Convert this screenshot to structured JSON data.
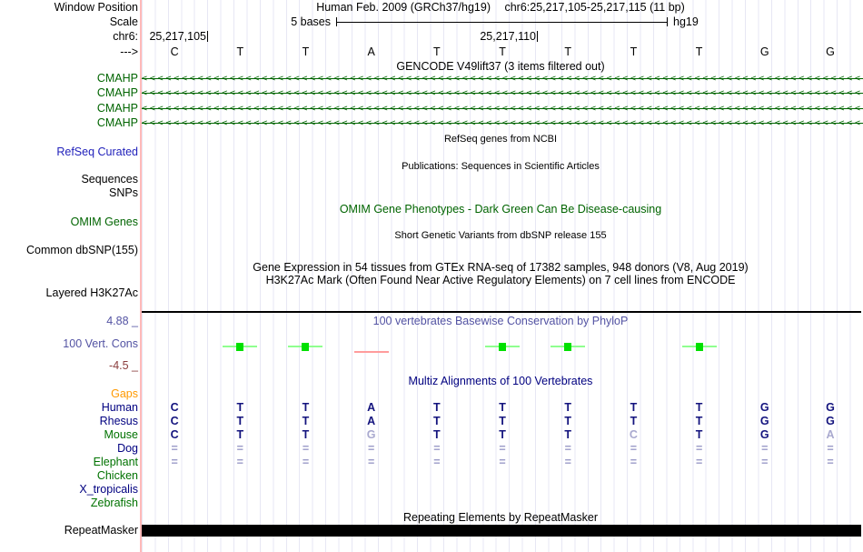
{
  "header": {
    "window_position_label": "Window Position",
    "assembly": "Human Feb. 2009 (GRCh37/hg19)",
    "position": "chr6:25,217,105-25,217,115 (11 bp)",
    "scale_label": "Scale",
    "scale_text": "5 bases",
    "scale_right": "hg19",
    "chrom_label": "chr6:",
    "coord_left": "25,217,105",
    "coord_mid": "25,217,110",
    "strand_label": "--->",
    "bases": [
      "C",
      "T",
      "T",
      "A",
      "T",
      "T",
      "T",
      "T",
      "T",
      "G",
      "G"
    ]
  },
  "tracks": {
    "gencode": {
      "title": "GENCODE V49lift37 (3 items filtered out)",
      "strand_char": "<",
      "genes": [
        {
          "label": "CMAHP"
        },
        {
          "label": "CMAHP"
        },
        {
          "label": "CMAHP"
        },
        {
          "label": "CMAHP"
        }
      ]
    },
    "refseq": {
      "title": "RefSeq genes from NCBI",
      "label": "RefSeq Curated"
    },
    "publications": {
      "title": "Publications: Sequences in Scientific Articles"
    },
    "sequences_label": "Sequences",
    "snps_label": "SNPs",
    "omim": {
      "title": "OMIM Gene Phenotypes - Dark Green Can Be Disease-causing",
      "label": "OMIM Genes"
    },
    "dbsnp": {
      "title": "Short Genetic Variants from dbSNP release 155",
      "label": "Common dbSNP(155)"
    },
    "gtex": {
      "title": "Gene Expression in 54 tissues from GTEx RNA-seq of 17382 samples, 948 donors (V8, Aug 2019)"
    },
    "h3k27ac": {
      "title": "H3K27Ac Mark (Often Found Near Active Regulatory Elements) on 7 cell lines from ENCODE",
      "label": "Layered H3K27Ac"
    },
    "conservation": {
      "title": "100 vertebrates Basewise Conservation by PhyloP",
      "label": "100 Vert. Cons",
      "max_label": "4.88 _",
      "min_label": "-4.5 _",
      "marks": [
        {
          "col": 2,
          "type": "positive"
        },
        {
          "col": 3,
          "type": "positive"
        },
        {
          "col": 4,
          "type": "negative"
        },
        {
          "col": 6,
          "type": "positive"
        },
        {
          "col": 7,
          "type": "positive"
        },
        {
          "col": 9,
          "type": "positive"
        }
      ]
    },
    "multiz": {
      "title": "Multiz Alignments of 100 Vertebrates",
      "rows": [
        {
          "label": "Gaps",
          "label_color": "#ff9900",
          "cells": []
        },
        {
          "label": "Human",
          "label_color": "#000080",
          "cells": [
            "C",
            "T",
            "T",
            "A",
            "T",
            "T",
            "T",
            "T",
            "T",
            "G",
            "G"
          ],
          "pale": []
        },
        {
          "label": "Rhesus",
          "label_color": "#000080",
          "cells": [
            "C",
            "T",
            "T",
            "A",
            "T",
            "T",
            "T",
            "T",
            "T",
            "G",
            "G"
          ],
          "pale": []
        },
        {
          "label": "Mouse",
          "label_color": "#007200",
          "cells": [
            "C",
            "T",
            "T",
            "G",
            "T",
            "T",
            "T",
            "C",
            "T",
            "G",
            "A"
          ],
          "pale": [
            4,
            8,
            11
          ]
        },
        {
          "label": "Dog",
          "label_color": "#000080",
          "cells": [
            "=",
            "=",
            "=",
            "=",
            "=",
            "=",
            "=",
            "=",
            "=",
            "=",
            "="
          ],
          "gap_style": true
        },
        {
          "label": "Elephant",
          "label_color": "#007200",
          "cells": [
            "=",
            "=",
            "=",
            "=",
            "=",
            "=",
            "=",
            "=",
            "=",
            "=",
            "="
          ],
          "gap_style": true
        },
        {
          "label": "Chicken",
          "label_color": "#007200",
          "cells": []
        },
        {
          "label": "X_tropicalis",
          "label_color": "#000080",
          "cells": []
        },
        {
          "label": "Zebrafish",
          "label_color": "#007200",
          "cells": []
        }
      ]
    },
    "repeatmasker": {
      "title": "Repeating Elements by RepeatMasker",
      "label": "RepeatMasker"
    }
  },
  "colors": {
    "grid_line": "#e7e7f4",
    "left_border_pink": "#ffb9b9",
    "gene_green": "#006400",
    "refseq_blue": "#2222bb",
    "omim_green": "#006400",
    "conservation_slate": "#5353a3",
    "min_maroon": "#8b3d3d",
    "multiz_navy": "#000080",
    "gaps_orange": "#ff9900",
    "base_letter_navy": "#13137e",
    "pale_letter": "#a9a9cf",
    "gap_mark": "#9a9ac8",
    "cons_positive_square": "#00e000",
    "cons_positive_line": "#8fff8f",
    "cons_negative_line": "#ff9c9c",
    "repeat_bar": "#000000"
  }
}
